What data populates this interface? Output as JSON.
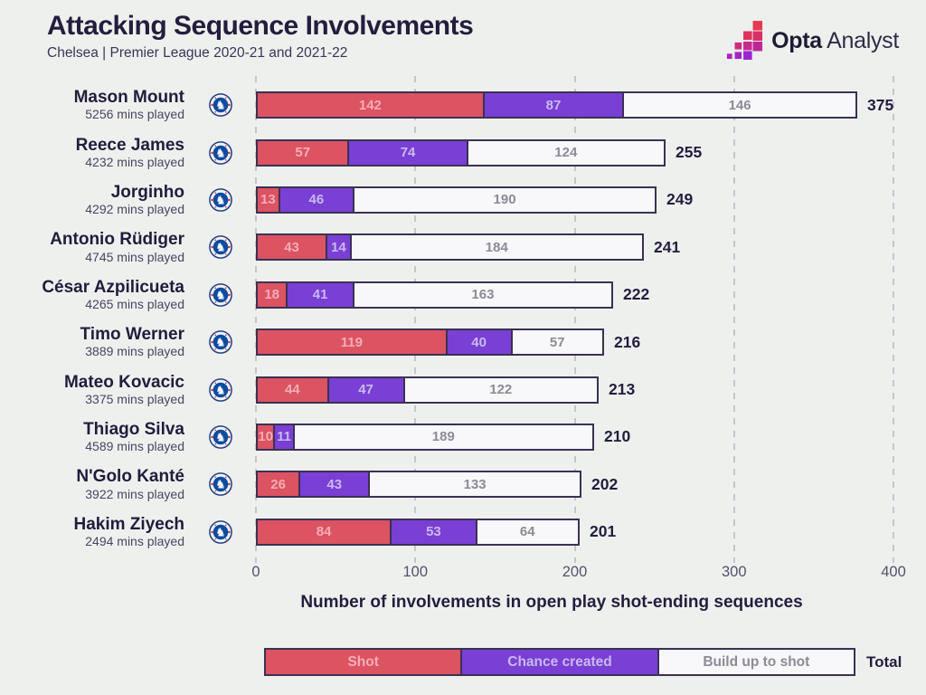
{
  "header": {
    "title": "Attacking Sequence Involvements",
    "subtitle": "Chelsea | Premier League 2020-21 and 2021-22"
  },
  "logo": {
    "brand_bold": "Opta",
    "brand_light": "Analyst"
  },
  "players": [
    {
      "name": "Mason Mount",
      "mins": "5256 mins played",
      "shot": 142,
      "chance": 87,
      "buildup": 146,
      "total": 375
    },
    {
      "name": "Reece James",
      "mins": "4232 mins played",
      "shot": 57,
      "chance": 74,
      "buildup": 124,
      "total": 255
    },
    {
      "name": "Jorginho",
      "mins": "4292 mins played",
      "shot": 13,
      "chance": 46,
      "buildup": 190,
      "total": 249
    },
    {
      "name": "Antonio Rüdiger",
      "mins": "4745 mins played",
      "shot": 43,
      "chance": 14,
      "buildup": 184,
      "total": 241
    },
    {
      "name": "César Azpilicueta",
      "mins": "4265 mins played",
      "shot": 18,
      "chance": 41,
      "buildup": 163,
      "total": 222
    },
    {
      "name": "Timo Werner",
      "mins": "3889 mins played",
      "shot": 119,
      "chance": 40,
      "buildup": 57,
      "total": 216
    },
    {
      "name": "Mateo Kovacic",
      "mins": "3375 mins played",
      "shot": 44,
      "chance": 47,
      "buildup": 122,
      "total": 213
    },
    {
      "name": "Thiago Silva",
      "mins": "4589 mins played",
      "shot": 10,
      "chance": 11,
      "buildup": 189,
      "total": 210
    },
    {
      "name": "N'Golo Kanté",
      "mins": "3922 mins played",
      "shot": 26,
      "chance": 43,
      "buildup": 133,
      "total": 202
    },
    {
      "name": "Hakim Ziyech",
      "mins": "2494 mins played",
      "shot": 84,
      "chance": 53,
      "buildup": 64,
      "total": 201
    }
  ],
  "axis": {
    "ticks": [
      0,
      100,
      200,
      300,
      400
    ],
    "label": "Number of involvements in open play shot-ending sequences"
  },
  "legend": {
    "segments": [
      {
        "key": "shot",
        "label": "Shot"
      },
      {
        "key": "chance",
        "label": "Chance created"
      },
      {
        "key": "buildup",
        "label": "Build up to shot"
      }
    ],
    "total_label": "Total"
  },
  "colors": {
    "background": "#eef0ee",
    "shot": "#dc5362",
    "chance": "#7a3fd4",
    "buildup": "#f8f7f9",
    "bar_border": "#3b3153",
    "shot_text": "#f2aeb6",
    "chance_text": "#c9baee",
    "buildup_text": "#8e8a96",
    "gridline": "#c6c5cc",
    "title_text": "#241d3d"
  },
  "chart_data": {
    "type": "bar",
    "orientation": "horizontal",
    "stacked": true,
    "title": "Attacking Sequence Involvements",
    "subtitle": "Chelsea | Premier League 2020-21 and 2021-22",
    "categories": [
      "Mason Mount",
      "Reece James",
      "Jorginho",
      "Antonio Rüdiger",
      "César Azpilicueta",
      "Timo Werner",
      "Mateo Kovacic",
      "Thiago Silva",
      "N'Golo Kanté",
      "Hakim Ziyech"
    ],
    "category_sublabels": [
      "5256 mins played",
      "4232 mins played",
      "4292 mins played",
      "4745 mins played",
      "4265 mins played",
      "3889 mins played",
      "3375 mins played",
      "4589 mins played",
      "3922 mins played",
      "2494 mins played"
    ],
    "series": [
      {
        "name": "Shot",
        "color": "#dc5362",
        "values": [
          142,
          57,
          13,
          43,
          18,
          119,
          44,
          10,
          26,
          84
        ]
      },
      {
        "name": "Chance created",
        "color": "#7a3fd4",
        "values": [
          87,
          74,
          46,
          14,
          41,
          40,
          47,
          11,
          43,
          53
        ]
      },
      {
        "name": "Build up to shot",
        "color": "#f8f7f9",
        "values": [
          146,
          124,
          190,
          184,
          163,
          57,
          122,
          189,
          133,
          64
        ]
      }
    ],
    "totals": [
      375,
      255,
      249,
      241,
      222,
      216,
      213,
      210,
      202,
      201
    ],
    "xlabel": "Number of involvements in open play shot-ending sequences",
    "xlim": [
      0,
      400
    ],
    "xticks": [
      0,
      100,
      200,
      300,
      400
    ],
    "grid": "dashed-vertical",
    "legend_position": "bottom"
  }
}
